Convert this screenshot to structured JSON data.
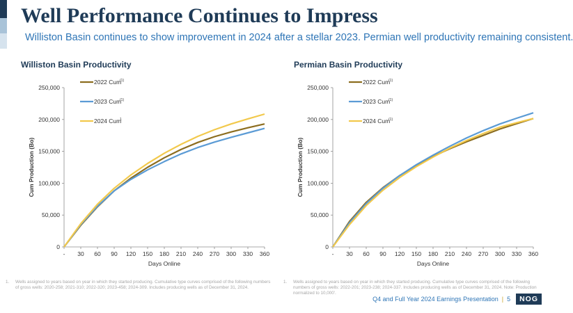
{
  "header": {
    "title": "Well Performance Continues to Impress",
    "subtitle": "Williston Basin continues to show improvement in 2024 after a stellar 2023.  Permian well productivity remaining consistent."
  },
  "colors": {
    "accent_bar_top": "#1f3b57",
    "accent_bar_mid": "#a9c3d8",
    "accent_bar_bottom": "#d6e3ee",
    "series_2022": "#8c6d1f",
    "series_2023": "#5b9bd5",
    "series_2024": "#f2c94c"
  },
  "chart_data": [
    {
      "type": "line",
      "title": "Williston Basin Productivity",
      "xlabel": "Days Online",
      "ylabel": "Cum Production (Bo)",
      "x_ticks": [
        "-",
        "30",
        "60",
        "90",
        "120",
        "150",
        "180",
        "210",
        "240",
        "270",
        "300",
        "330",
        "360"
      ],
      "y_ticks": [
        "0",
        "50,000",
        "100,000",
        "150,000",
        "200,000",
        "250,000"
      ],
      "xlim": [
        0,
        360
      ],
      "ylim": [
        0,
        250000
      ],
      "grid": false,
      "legend_position": "top-left",
      "x": [
        0,
        30,
        60,
        90,
        120,
        150,
        180,
        210,
        240,
        270,
        300,
        330,
        360
      ],
      "series": [
        {
          "name": "2022 Cum",
          "note": "(1)",
          "color": "#8c6d1f",
          "values": [
            0,
            34000,
            63000,
            88000,
            108000,
            125000,
            140000,
            153000,
            164000,
            173000,
            180500,
            187000,
            193000
          ]
        },
        {
          "name": "2023 Cum",
          "note": "(1)",
          "color": "#5b9bd5",
          "values": [
            0,
            35000,
            64000,
            88000,
            106000,
            121000,
            134000,
            146000,
            156000,
            164500,
            172000,
            179000,
            186000
          ]
        },
        {
          "name": "2024 Cum",
          "note": "1",
          "color": "#f2c94c",
          "values": [
            0,
            36500,
            67000,
            92000,
            113000,
            131000,
            147000,
            161000,
            173500,
            184000,
            193000,
            201000,
            208500
          ]
        }
      ]
    },
    {
      "type": "line",
      "title": "Permian Basin Productivity",
      "xlabel": "Days Online",
      "ylabel": "Cum Production (Bo)",
      "x_ticks": [
        "-",
        "30",
        "60",
        "90",
        "120",
        "150",
        "180",
        "210",
        "240",
        "270",
        "300",
        "330",
        "360"
      ],
      "y_ticks": [
        "0",
        "50,000",
        "100,000",
        "150,000",
        "200,000",
        "250,000"
      ],
      "xlim": [
        0,
        360
      ],
      "ylim": [
        0,
        250000
      ],
      "grid": false,
      "legend_position": "top-left",
      "x": [
        0,
        30,
        60,
        90,
        120,
        150,
        180,
        210,
        240,
        270,
        300,
        330,
        360
      ],
      "series": [
        {
          "name": "2022 Cum",
          "note": "(1)",
          "color": "#8c6d1f",
          "values": [
            0,
            40000,
            70000,
            93000,
            112000,
            128000,
            142000,
            154000,
            165000,
            175000,
            185000,
            193500,
            201500
          ]
        },
        {
          "name": "2023 Cum",
          "note": "(1)",
          "color": "#5b9bd5",
          "values": [
            0,
            38000,
            68000,
            92000,
            112000,
            129000,
            144000,
            158000,
            171000,
            182500,
            193000,
            202000,
            210500
          ]
        },
        {
          "name": "2024 Cum",
          "note": "(1)",
          "color": "#f2c94c",
          "values": [
            0,
            35000,
            65000,
            89000,
            109000,
            126000,
            141000,
            155000,
            167000,
            178000,
            188000,
            195000,
            201500
          ]
        }
      ]
    }
  ],
  "footnotes": {
    "left": {
      "num": "1.",
      "text": "Wells assigned to years based on year in which they started producing. Cumulative type curves comprised of the following numbers of gross wells: 2020-258; 2021-310; 2022-320; 2023-458; 2024-309. Includes producing wells as of December 31, 2024."
    },
    "right": {
      "num": "1.",
      "text": "Wells assigned to years based on year in which they started producing. Cumulative type curves comprised of the following numbers of gross wells: 2022-201; 2023-238; 2024-337. Includes producing wells as of December 31, 2024. Note: Production normalized to 10,000'."
    }
  },
  "footer": {
    "presentation": "Q4 and Full Year 2024 Earnings Presentation",
    "separator": "|",
    "page": "5",
    "logo": "NOG"
  }
}
